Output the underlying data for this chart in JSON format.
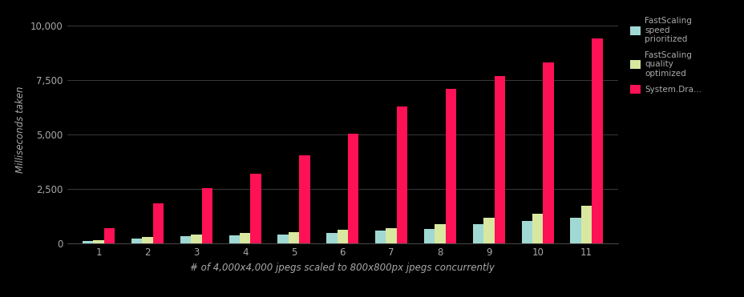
{
  "categories": [
    1,
    2,
    3,
    4,
    5,
    6,
    7,
    8,
    9,
    10,
    11
  ],
  "fastscaling_speed": [
    120,
    220,
    350,
    380,
    420,
    480,
    580,
    680,
    900,
    1050,
    1200
  ],
  "fastscaling_quality": [
    160,
    320,
    430,
    470,
    530,
    620,
    720,
    880,
    1200,
    1350,
    1750
  ],
  "system_draw": [
    700,
    1850,
    2550,
    3200,
    4050,
    5050,
    6300,
    7100,
    7700,
    8300,
    9400
  ],
  "color_speed": "#a0d8d4",
  "color_quality": "#d8e8a0",
  "color_draw": "#ff1155",
  "xlabel": "# of 4,000x4,000 jpegs scaled to 800x800px jpegs concurrently",
  "ylabel": "Milliseconds taken",
  "ylim": [
    0,
    10500
  ],
  "yticks": [
    0,
    2500,
    5000,
    7500,
    10000
  ],
  "background_color": "#000000",
  "grid_color": "#444444",
  "text_color": "#aaaaaa",
  "legend_labels": [
    "FastScaling\nspeed\nprioritized",
    "FastScaling\nquality\noptimized",
    "System.Dra..."
  ],
  "bar_width": 0.22,
  "axis_fontsize": 8.5
}
